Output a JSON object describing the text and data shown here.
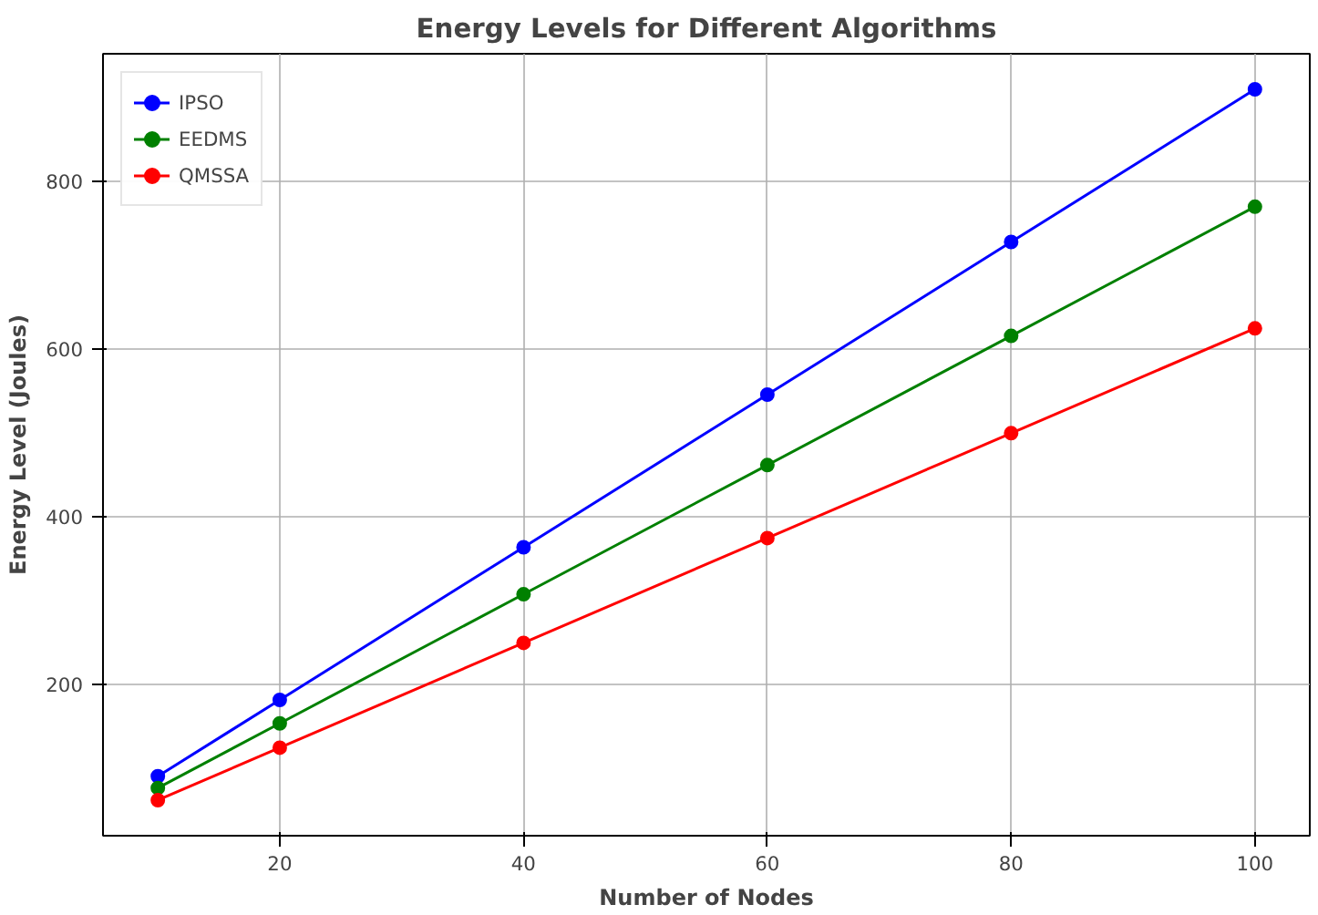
{
  "chart_data": {
    "type": "line",
    "title": "Energy Levels for Different Algorithms",
    "xlabel": "Number of Nodes",
    "ylabel": "Energy Level (Joules)",
    "x": [
      10,
      20,
      40,
      60,
      80,
      100
    ],
    "series": [
      {
        "name": "IPSO",
        "color": "#0000ff",
        "values": [
          91,
          182,
          364,
          546,
          728,
          910
        ]
      },
      {
        "name": "EEDMS",
        "color": "#008000",
        "values": [
          77,
          154,
          308,
          462,
          616,
          770
        ]
      },
      {
        "name": "QMSSA",
        "color": "#ff0000",
        "values": [
          62.5,
          125,
          250,
          375,
          500,
          625
        ]
      }
    ],
    "xlim": [
      5.5,
      104.5
    ],
    "ylim": [
      20.1,
      952.4
    ],
    "xticks": [
      20,
      40,
      60,
      80,
      100
    ],
    "yticks": [
      200,
      400,
      600,
      800
    ],
    "grid": true,
    "legend": "top left",
    "marker": "circle",
    "line_style": "solid"
  }
}
